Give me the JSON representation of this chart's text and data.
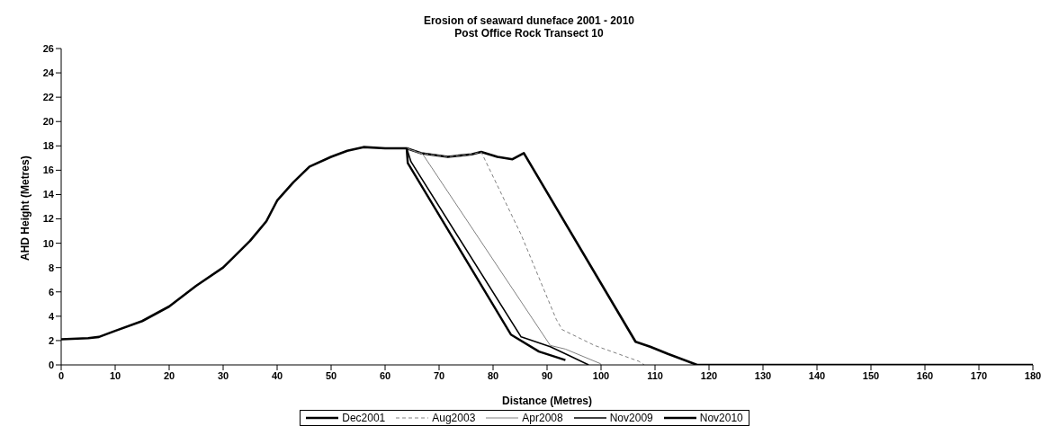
{
  "chart_data": {
    "type": "line",
    "title": "Erosion of seaward duneface 2001 - 2010",
    "subtitle": "Post Office Rock Transect 10",
    "xlabel": "Distance (Metres)",
    "ylabel": "AHD Height (Metres)",
    "xlim": [
      0,
      180
    ],
    "xticks": [
      0,
      10,
      20,
      30,
      40,
      50,
      60,
      70,
      80,
      90,
      100,
      110,
      120,
      130,
      140,
      150,
      160,
      170,
      180
    ],
    "ylim": [
      0,
      26
    ],
    "yticks": [
      0,
      2,
      4,
      6,
      8,
      10,
      12,
      14,
      16,
      18,
      20,
      22,
      24,
      26
    ],
    "grid": false,
    "legend": "bottom",
    "marker": "none",
    "series": [
      {
        "name": "Dec2001",
        "color": "#000000",
        "line_style": "solid",
        "x": [
          0,
          5,
          7,
          10,
          15,
          20,
          25,
          30,
          35,
          38,
          40,
          43,
          46,
          50,
          53,
          56,
          60,
          64,
          66.7,
          71.6,
          76,
          77.8,
          80.8,
          83.6,
          85.7,
          106.4,
          109.1,
          112.4,
          117.8,
          180
        ],
        "values": [
          2.1,
          2.2,
          2.3,
          2.8,
          3.6,
          4.8,
          6.5,
          8.0,
          10.2,
          11.8,
          13.5,
          15.0,
          16.3,
          17.1,
          17.6,
          17.9,
          17.8,
          17.8,
          17.4,
          17.1,
          17.3,
          17.5,
          17.1,
          16.9,
          17.4,
          1.9,
          1.5,
          0.9,
          0,
          0
        ]
      },
      {
        "name": "Aug2003",
        "color": "#808080",
        "line_style": "dashed",
        "x": [
          64,
          66.7,
          71.6,
          76,
          77.8,
          85.2,
          91.7,
          92.8,
          98.8,
          107,
          108
        ],
        "values": [
          17.8,
          17.4,
          17.1,
          17.3,
          17.5,
          10.7,
          3.75,
          2.9,
          1.6,
          0.3,
          0
        ]
      },
      {
        "name": "Apr2008",
        "color": "#808080",
        "line_style": "solid",
        "x": [
          64,
          67,
          90.6,
          93.4,
          99.9,
          100
        ],
        "values": [
          17.8,
          17.3,
          1.6,
          1.3,
          0.1,
          0
        ]
      },
      {
        "name": "Nov2009",
        "color": "#000000",
        "line_style": "solid",
        "x": [
          64,
          64.8,
          85.2,
          90.6,
          94.4,
          97.7
        ],
        "values": [
          17.8,
          16.7,
          2.3,
          1.5,
          0.7,
          0
        ]
      },
      {
        "name": "Nov2010",
        "color": "#000000",
        "line_style": "solid",
        "x": [
          64,
          64.2,
          83.3,
          88.5,
          93.4
        ],
        "values": [
          17.8,
          16.6,
          2.5,
          1.1,
          0.4
        ]
      }
    ]
  }
}
